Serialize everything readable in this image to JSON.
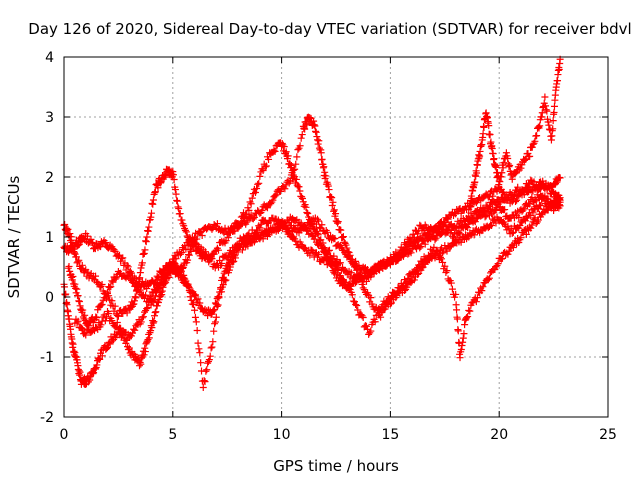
{
  "chart_data": {
    "type": "scatter",
    "title": "Day 126 of 2020, Sidereal Day-to-day VTEC variation (SDTVAR) for receiver bdvl",
    "xlabel": "GPS time / hours",
    "ylabel": "SDTVAR / TECUs",
    "xlim": [
      0,
      25
    ],
    "ylim": [
      -2,
      4
    ],
    "xticks": [
      "0",
      "5",
      "10",
      "15",
      "20",
      "25"
    ],
    "yticks": [
      "-2",
      "-1",
      "0",
      "1",
      "2",
      "3",
      "4"
    ],
    "grid": true,
    "marker": "+",
    "color": "#ff0000",
    "series": [
      {
        "name": "trace-1",
        "x": [
          0.0,
          0.3,
          0.6,
          0.8,
          1.0,
          1.4,
          1.8,
          2.2,
          2.7,
          3.2,
          3.6,
          4.0,
          4.4,
          4.8,
          5.2,
          5.6,
          6.0,
          6.5,
          7.0,
          7.5,
          8.0,
          8.5,
          9.0,
          9.5,
          10.0,
          10.5,
          11.0,
          11.5,
          12.0,
          12.5,
          13.0,
          13.5,
          14.0,
          14.5,
          15.0,
          15.5,
          16.0,
          16.5,
          17.0,
          17.5,
          18.0,
          18.5,
          19.0,
          19.5,
          20.0,
          20.5,
          21.0,
          21.5,
          22.0,
          22.5,
          22.8
        ],
        "y": [
          0.8,
          0.8,
          0.9,
          0.95,
          1.0,
          0.85,
          0.9,
          0.8,
          0.6,
          0.3,
          0.2,
          0.2,
          0.4,
          0.55,
          0.4,
          0.6,
          0.9,
          0.7,
          0.5,
          0.7,
          0.85,
          0.95,
          1.0,
          1.1,
          1.2,
          1.15,
          1.1,
          1.3,
          1.1,
          0.9,
          0.7,
          0.5,
          0.4,
          0.5,
          0.6,
          0.8,
          1.0,
          1.2,
          1.1,
          1.2,
          1.0,
          1.2,
          1.3,
          1.4,
          1.5,
          1.3,
          1.4,
          1.6,
          1.7,
          1.5,
          1.6
        ]
      },
      {
        "name": "trace-2",
        "x": [
          0.0,
          0.2,
          0.4,
          0.6,
          0.8,
          1.0,
          1.3,
          1.6,
          2.0,
          2.4,
          2.8,
          3.2,
          3.5,
          3.8,
          4.1,
          4.4,
          4.7,
          5.0,
          5.3,
          5.6,
          6.0,
          6.4,
          6.8,
          7.2,
          7.6,
          8.0,
          8.5,
          9.0,
          9.5,
          10.0,
          10.5,
          11.0,
          11.5,
          12.0,
          12.5,
          13.0,
          13.5,
          14.0,
          14.5,
          15.0,
          15.5,
          16.0,
          16.5,
          17.0,
          17.5,
          18.0,
          18.5,
          19.0,
          19.5,
          20.0,
          20.5,
          21.0,
          21.5,
          22.0,
          22.5,
          22.8
        ],
        "y": [
          0.2,
          -0.3,
          -0.8,
          -1.1,
          -1.4,
          -1.4,
          -1.3,
          -1.0,
          -0.8,
          -0.6,
          -0.7,
          -1.0,
          -1.1,
          -0.8,
          -0.4,
          0.0,
          0.3,
          0.5,
          0.4,
          0.2,
          0.0,
          -0.2,
          -0.3,
          0.1,
          0.5,
          0.8,
          0.9,
          1.0,
          1.1,
          1.2,
          1.3,
          1.2,
          1.0,
          0.8,
          0.6,
          0.4,
          0.3,
          0.3,
          0.5,
          0.6,
          0.7,
          0.8,
          0.9,
          1.0,
          1.1,
          1.2,
          1.3,
          1.4,
          1.5,
          1.6,
          1.7,
          1.8,
          1.9,
          1.8,
          1.9,
          2.0
        ]
      },
      {
        "name": "trace-3",
        "x": [
          0.0,
          0.3,
          0.6,
          1.0,
          1.5,
          2.0,
          2.5,
          3.0,
          3.3,
          3.6,
          3.9,
          4.2,
          4.5,
          4.8,
          5.0,
          5.3,
          5.7,
          6.1,
          6.5,
          7.0,
          7.5,
          8.0,
          8.5,
          9.0,
          9.5,
          10.0,
          10.3,
          10.6,
          11.0,
          11.4,
          11.8,
          12.2,
          12.6,
          13.0,
          13.5,
          14.0,
          14.5,
          15.0,
          15.5,
          16.0,
          16.5,
          17.0,
          17.5,
          18.0,
          18.5,
          19.0,
          19.5,
          20.0,
          20.5,
          21.0,
          21.5,
          22.0,
          22.5,
          22.8
        ],
        "y": [
          1.2,
          1.0,
          0.6,
          0.4,
          0.3,
          0.0,
          -0.3,
          -0.2,
          0.0,
          0.6,
          1.2,
          1.8,
          2.0,
          2.1,
          2.05,
          1.4,
          1.0,
          0.8,
          0.6,
          0.8,
          1.0,
          1.2,
          1.5,
          2.0,
          2.4,
          2.55,
          2.3,
          2.0,
          1.6,
          1.2,
          0.9,
          0.6,
          0.3,
          0.2,
          0.3,
          0.4,
          0.5,
          0.6,
          0.7,
          0.9,
          1.0,
          1.1,
          1.3,
          1.4,
          1.5,
          1.6,
          1.7,
          1.8,
          1.6,
          1.7,
          1.8,
          1.9,
          1.7,
          1.6
        ]
      },
      {
        "name": "trace-4",
        "x": [
          0.2,
          0.5,
          0.8,
          1.1,
          1.5,
          2.0,
          2.5,
          3.0,
          3.5,
          4.0,
          4.5,
          5.0,
          5.5,
          6.0,
          6.4,
          6.8,
          7.2,
          7.6,
          8.0,
          8.5,
          9.0,
          9.5,
          10.0,
          10.5,
          11.0,
          11.5,
          12.0,
          12.5,
          13.0,
          13.5,
          14.0,
          14.5,
          15.0,
          15.5,
          16.0,
          16.5,
          17.0,
          17.5,
          18.0,
          18.5,
          19.0,
          19.5,
          20.0,
          20.5,
          21.0,
          21.5,
          22.0,
          22.5,
          22.8
        ],
        "y": [
          0.5,
          0.2,
          -0.2,
          -0.5,
          -0.3,
          0.1,
          0.4,
          0.3,
          0.1,
          -0.1,
          0.2,
          0.6,
          0.4,
          -0.2,
          -1.5,
          -0.8,
          0.2,
          0.6,
          0.9,
          1.0,
          1.2,
          1.3,
          1.2,
          1.0,
          0.8,
          0.7,
          0.6,
          0.5,
          0.2,
          -0.2,
          -0.6,
          -0.2,
          0.0,
          0.1,
          0.3,
          0.5,
          0.7,
          0.8,
          0.9,
          1.0,
          1.1,
          1.2,
          1.3,
          1.1,
          1.2,
          1.4,
          1.6,
          1.5,
          1.7
        ]
      },
      {
        "name": "trace-5",
        "x": [
          0.5,
          1.0,
          1.5,
          2.0,
          2.5,
          3.0,
          3.5,
          4.0,
          4.5,
          5.0,
          5.5,
          6.0,
          6.5,
          7.0,
          7.5,
          8.0,
          8.5,
          9.0,
          9.5,
          10.0,
          10.5,
          11.0,
          11.2,
          11.5,
          11.8,
          12.0,
          12.3,
          12.6,
          13.0,
          13.5,
          14.0,
          14.5,
          15.0,
          15.5,
          16.0,
          16.5,
          17.0,
          17.5,
          18.0,
          18.2,
          18.5,
          19.0,
          19.5,
          20.0,
          20.5,
          21.0,
          21.5,
          22.0,
          22.5,
          22.8
        ],
        "y": [
          -0.4,
          -0.6,
          -0.5,
          -0.3,
          -0.5,
          -0.7,
          -0.4,
          0.0,
          0.3,
          0.6,
          0.8,
          1.0,
          1.1,
          1.2,
          1.1,
          1.2,
          1.3,
          1.4,
          1.6,
          1.8,
          2.0,
          2.8,
          2.95,
          2.9,
          2.4,
          2.0,
          1.6,
          1.2,
          0.8,
          0.4,
          0.0,
          -0.3,
          -0.1,
          0.2,
          0.4,
          0.6,
          0.8,
          0.5,
          0.0,
          -1.0,
          -0.3,
          0.0,
          0.3,
          0.6,
          0.8,
          1.0,
          1.2,
          1.4,
          1.6,
          1.5
        ]
      },
      {
        "name": "trace-6",
        "x": [
          18.6,
          18.8,
          19.0,
          19.2,
          19.4,
          19.6,
          19.8,
          20.0,
          20.3,
          20.6,
          21.0,
          21.4,
          21.8,
          22.1,
          22.4,
          22.6,
          22.8
        ],
        "y": [
          1.4,
          1.8,
          2.2,
          2.6,
          3.1,
          2.6,
          2.2,
          1.9,
          2.4,
          2.0,
          2.2,
          2.4,
          2.8,
          3.3,
          2.6,
          3.4,
          3.95
        ]
      }
    ]
  }
}
